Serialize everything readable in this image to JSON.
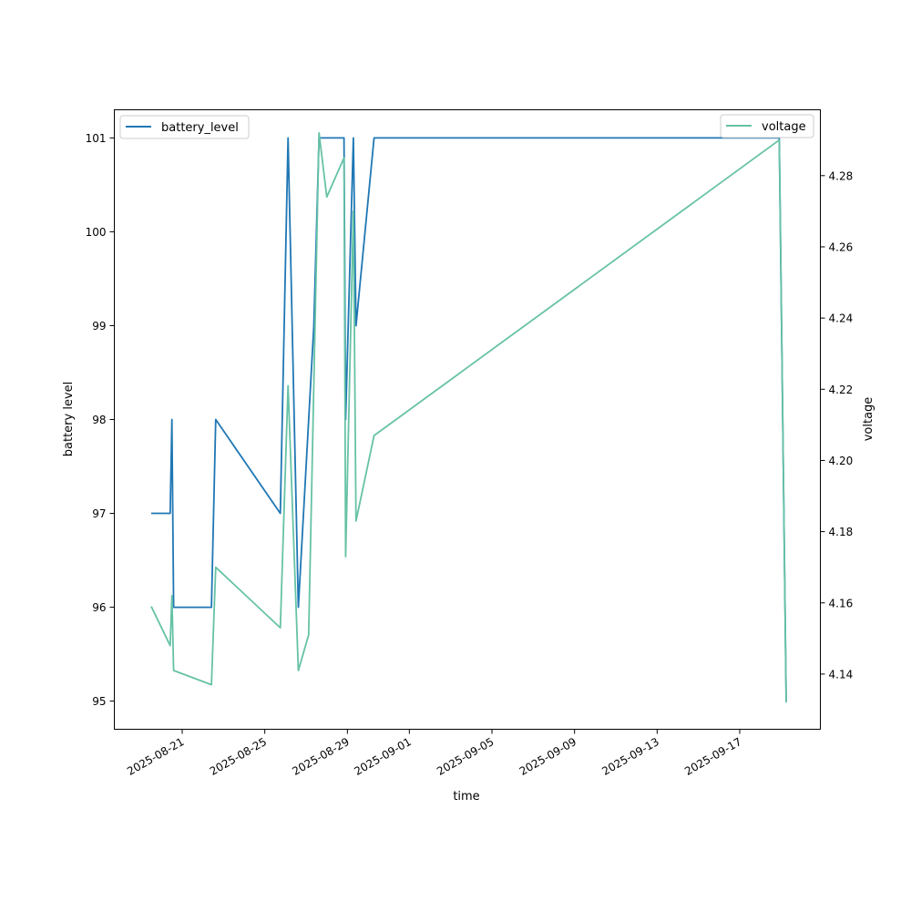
{
  "chart_data": {
    "type": "line",
    "xlabel": "time",
    "ylabel_left": "battery level",
    "ylabel_right": "voltage",
    "x_tick_labels": [
      "2025-08-21",
      "2025-08-25",
      "2025-08-29",
      "2025-09-01",
      "2025-09-05",
      "2025-09-09",
      "2025-09-13",
      "2025-09-17"
    ],
    "ylim_left": [
      94.7,
      101.3
    ],
    "ylim_right": [
      4.1245,
      4.2985
    ],
    "y_ticks_left": [
      95,
      96,
      97,
      98,
      99,
      100,
      101
    ],
    "y_ticks_right": [
      4.14,
      4.16,
      4.18,
      4.2,
      4.22,
      4.24,
      4.26,
      4.28
    ],
    "series": [
      {
        "name": "battery_level",
        "axis": "left",
        "color": "#1f77b4",
        "x": [
          "2025-08-19 12:00",
          "2025-08-20 10:00",
          "2025-08-20 12:00",
          "2025-08-20 14:00",
          "2025-08-22 10:00",
          "2025-08-22 15:00",
          "2025-08-25 18:00",
          "2025-08-26 03:00",
          "2025-08-26 15:00",
          "2025-08-27 09:00",
          "2025-08-27 15:00",
          "2025-08-28 20:00",
          "2025-08-28 22:00",
          "2025-08-29 07:00",
          "2025-08-29 10:00",
          "2025-08-30 07:00",
          "2025-09-18 22:00",
          "2025-09-19 06:00"
        ],
        "y": [
          97,
          97,
          98,
          96,
          96,
          98,
          97,
          101,
          96,
          99,
          101,
          101,
          98,
          101,
          99,
          101,
          101,
          95
        ]
      },
      {
        "name": "voltage",
        "axis": "right",
        "color": "#66c2a5",
        "x": [
          "2025-08-19 12:00",
          "2025-08-20 10:00",
          "2025-08-20 12:00",
          "2025-08-20 14:00",
          "2025-08-22 10:00",
          "2025-08-22 15:00",
          "2025-08-25 18:00",
          "2025-08-26 03:00",
          "2025-08-26 15:00",
          "2025-08-27 03:00",
          "2025-08-27 15:00",
          "2025-08-28 00:00",
          "2025-08-28 20:00",
          "2025-08-28 22:00",
          "2025-08-29 07:00",
          "2025-08-29 10:00",
          "2025-08-30 07:00",
          "2025-09-18 22:00",
          "2025-09-19 06:00"
        ],
        "y": [
          4.159,
          4.148,
          4.162,
          4.141,
          4.137,
          4.17,
          4.153,
          4.221,
          4.141,
          4.151,
          4.292,
          4.274,
          4.285,
          4.173,
          4.27,
          4.183,
          4.207,
          4.29,
          4.132
        ]
      }
    ],
    "legends": [
      {
        "placement": "top-left",
        "label": "battery_level"
      },
      {
        "placement": "top-right",
        "label": "voltage"
      }
    ]
  }
}
